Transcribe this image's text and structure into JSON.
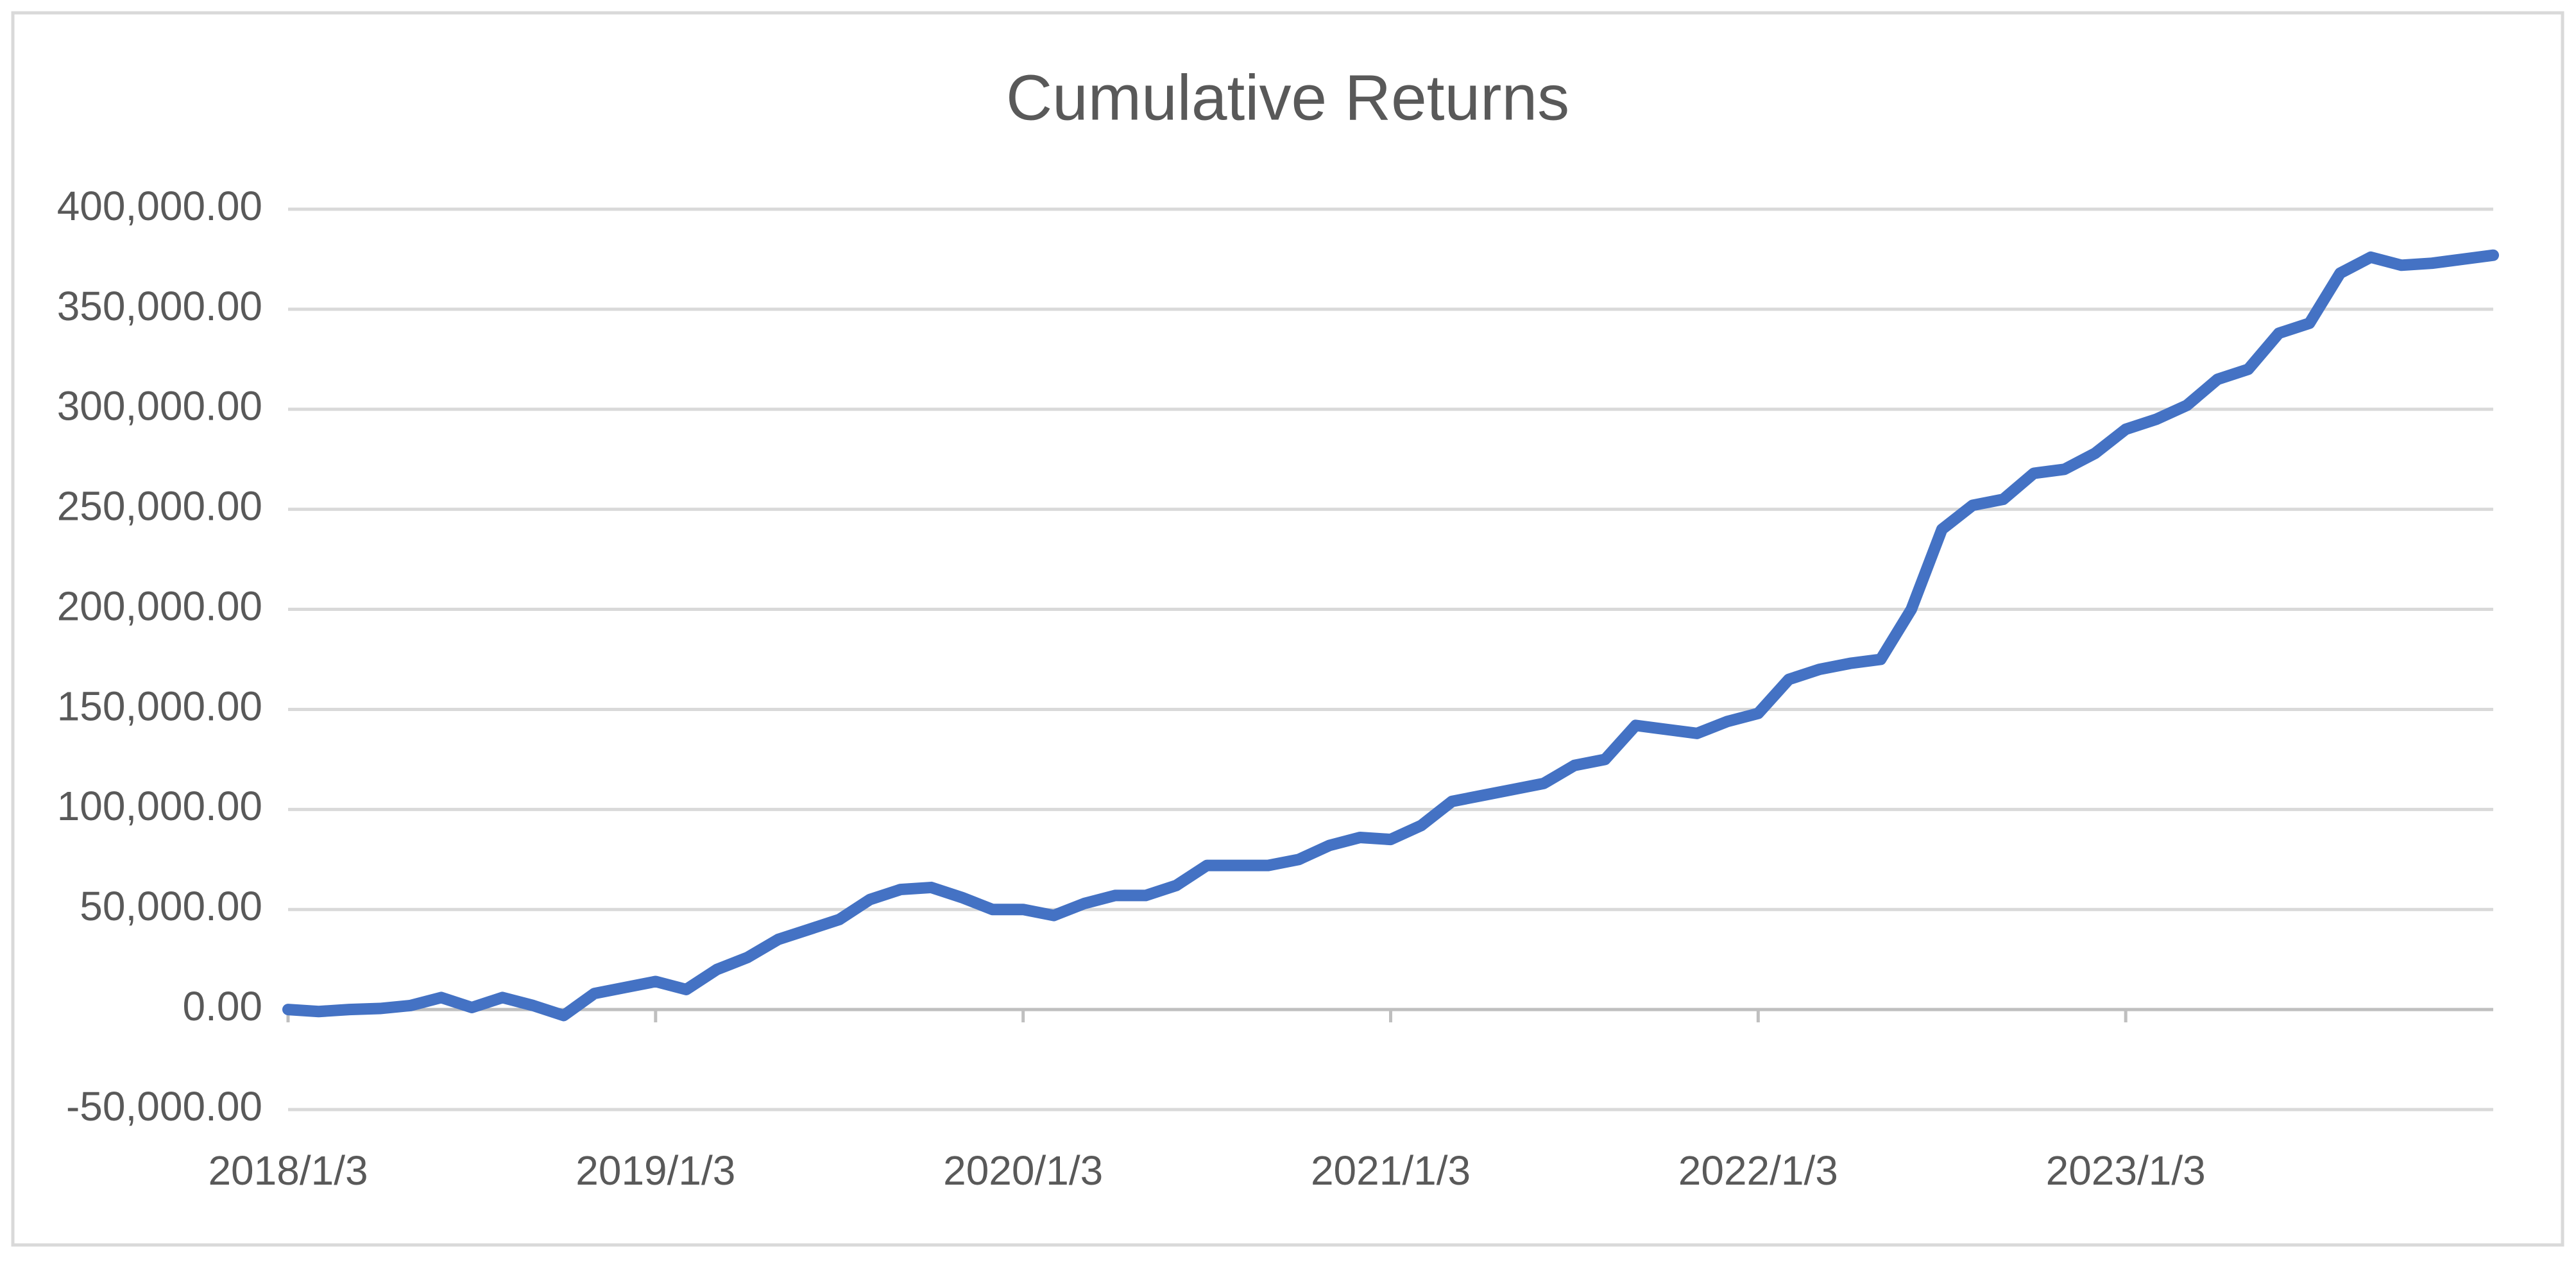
{
  "chart_data": {
    "type": "line",
    "title": "Cumulative Returns",
    "categories": [
      "2018/1/3",
      null,
      null,
      null,
      null,
      null,
      null,
      null,
      null,
      null,
      null,
      null,
      "2019/1/3",
      null,
      null,
      null,
      null,
      null,
      null,
      null,
      null,
      null,
      null,
      null,
      "2020/1/3",
      null,
      null,
      null,
      null,
      null,
      null,
      null,
      null,
      null,
      null,
      null,
      "2021/1/3",
      null,
      null,
      null,
      null,
      null,
      null,
      null,
      null,
      null,
      null,
      null,
      "2022/1/3",
      null,
      null,
      null,
      null,
      null,
      null,
      null,
      null,
      null,
      null,
      null,
      "2023/1/3",
      null,
      null,
      null,
      null,
      null,
      null,
      null,
      null,
      null,
      null,
      null,
      null
    ],
    "series": [
      {
        "color": "#4472c4",
        "values": [
          0,
          -1000,
          0,
          500,
          2000,
          6000,
          1000,
          6000,
          2000,
          -3000,
          8000,
          11000,
          14000,
          10000,
          20000,
          26000,
          35000,
          40000,
          45000,
          55000,
          60000,
          61000,
          56000,
          50000,
          50000,
          47000,
          53000,
          57000,
          57000,
          62000,
          72000,
          72000,
          72000,
          75000,
          82000,
          86000,
          85000,
          92000,
          104000,
          107000,
          110000,
          113000,
          122000,
          125000,
          142000,
          140000,
          138000,
          144000,
          148000,
          165000,
          170000,
          173000,
          175000,
          200000,
          240000,
          252000,
          255000,
          268000,
          270000,
          278000,
          290000,
          295000,
          302000,
          315000,
          320000,
          338000,
          343000,
          368000,
          376000,
          372000,
          373000,
          375000,
          377000
        ]
      }
    ],
    "ylim": [
      -50000,
      400000
    ],
    "yticks": [
      {
        "value": -50000,
        "label": "-50,000.00"
      },
      {
        "value": 0,
        "label": "0.00"
      },
      {
        "value": 50000,
        "label": "50,000.00"
      },
      {
        "value": 100000,
        "label": "100,000.00"
      },
      {
        "value": 150000,
        "label": "150,000.00"
      },
      {
        "value": 200000,
        "label": "200,000.00"
      },
      {
        "value": 250000,
        "label": "250,000.00"
      },
      {
        "value": 300000,
        "label": "300,000.00"
      },
      {
        "value": 350000,
        "label": "350,000.00"
      },
      {
        "value": 400000,
        "label": "400,000.00"
      }
    ],
    "grid": true
  }
}
